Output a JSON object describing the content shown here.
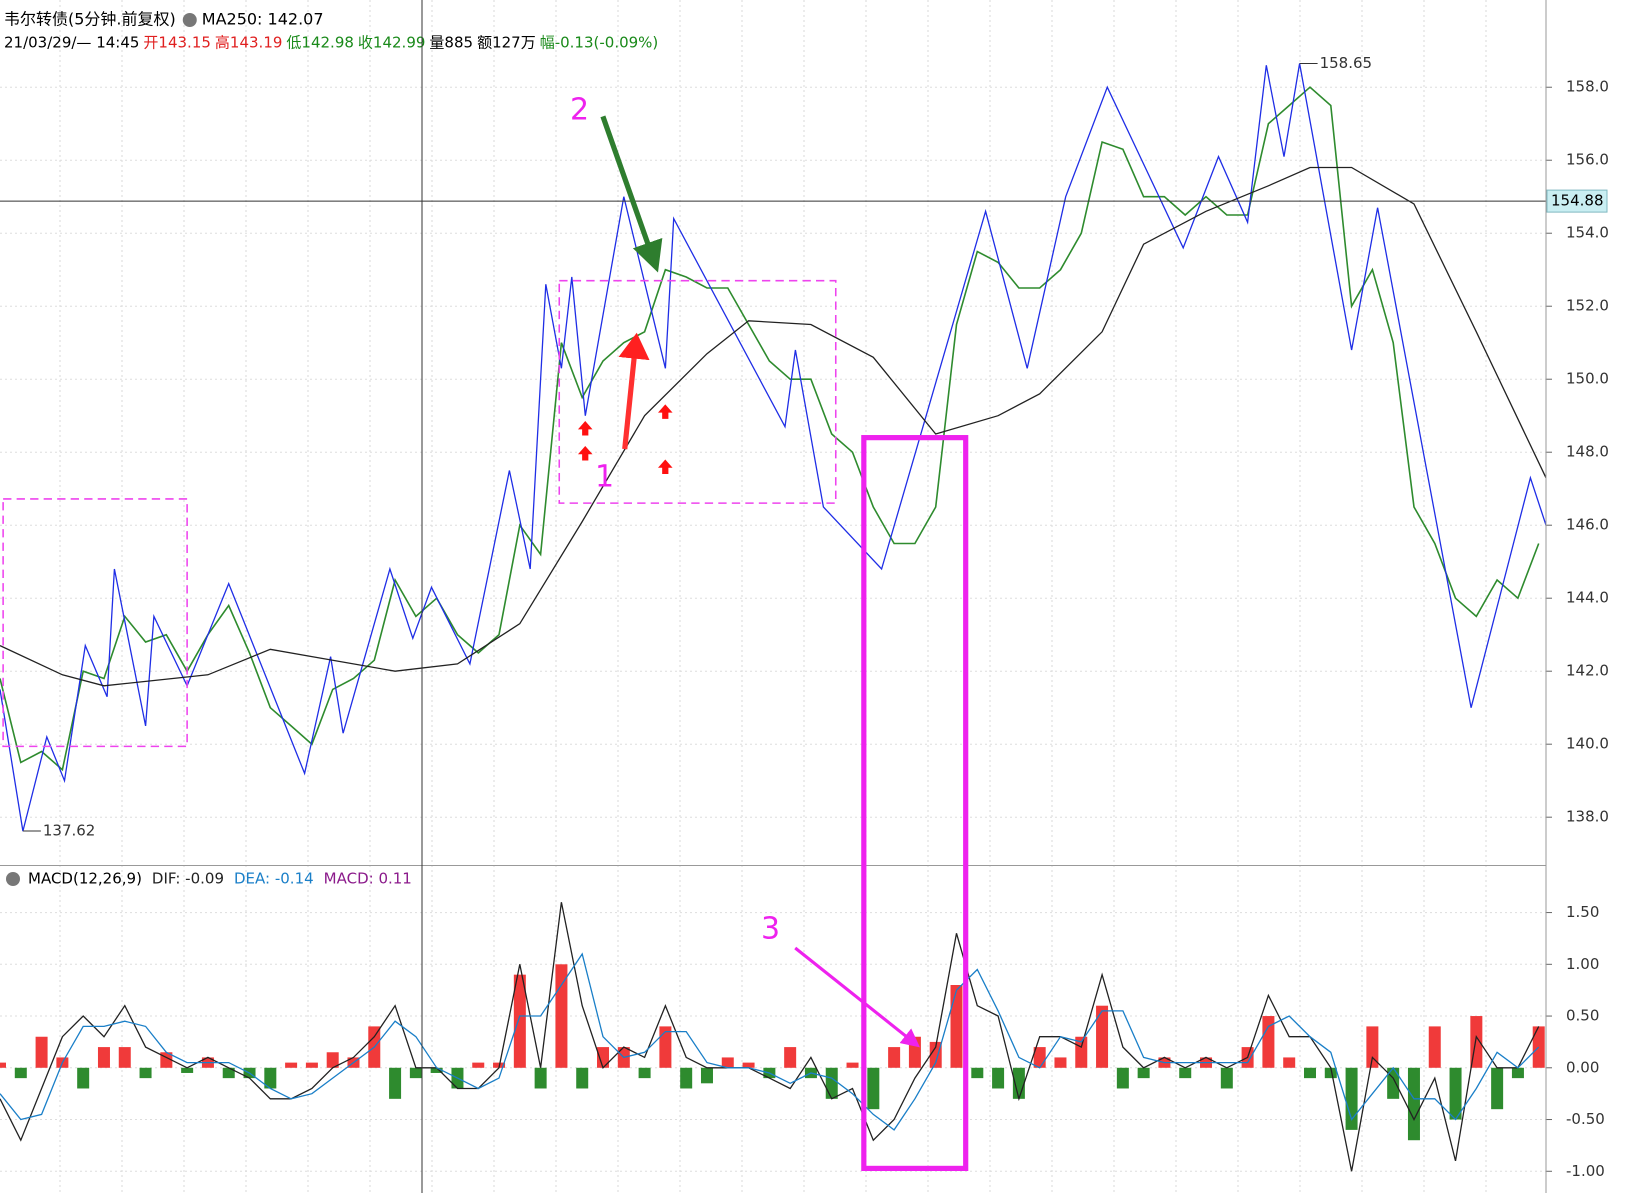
{
  "chart_data": [
    {
      "type": "line",
      "title": "韦尔转债(5分钟.前复权)",
      "info": [
        "21/03/29/— 14:45",
        "开143.15",
        "高143.19",
        "低142.98",
        "收142.99",
        "量885",
        "额127万",
        "幅-0.13(-0.09%)"
      ],
      "info_colors": [
        "#000000",
        "#e02020",
        "#e02020",
        "#1a8a1a",
        "#1a8a1a",
        "#000000",
        "#000000",
        "#1a8a1a"
      ],
      "markers": [
        "1",
        "2"
      ],
      "xlim": [
        0,
        74.35
      ],
      "ylim": [
        136.69,
        160.39
      ],
      "yticks": [
        {
          "value": 138,
          "label": "138.0"
        },
        {
          "value": 140,
          "label": "140.0"
        },
        {
          "value": 142,
          "label": "142.0"
        },
        {
          "value": 144,
          "label": "144.0"
        },
        {
          "value": 146,
          "label": "146.0"
        },
        {
          "value": 148,
          "label": "148.0"
        },
        {
          "value": 150,
          "label": "150.0"
        },
        {
          "value": 152,
          "label": "152.0"
        },
        {
          "value": 154,
          "label": "154.0"
        },
        {
          "value": 156,
          "label": "156.0"
        },
        {
          "value": 158,
          "label": "158.0"
        }
      ],
      "grid": true,
      "crosshair_price": 154.88,
      "annotations": [
        {
          "x": 62.5,
          "value": 158.65
        },
        {
          "x": 1.1,
          "value": 137.62
        }
      ],
      "series": [
        {
          "color": "#2e8b2e",
          "x": [
            0,
            1,
            2,
            3,
            4,
            5,
            6,
            7,
            8,
            9,
            10,
            11,
            12,
            13,
            14,
            15,
            16,
            17,
            18,
            19,
            20,
            21,
            22,
            23,
            24,
            25,
            26,
            27,
            28,
            29,
            30,
            31,
            32,
            33,
            34,
            35,
            36,
            37,
            38,
            39,
            40,
            41,
            42,
            43,
            44,
            45,
            46,
            47,
            48,
            49,
            50,
            51,
            52,
            53,
            54,
            55,
            56,
            57,
            58,
            59,
            60,
            61,
            62,
            63,
            64,
            65,
            66,
            67,
            68,
            69,
            70,
            71,
            72,
            73,
            74
          ],
          "values": [
            141.8,
            139.5,
            139.8,
            139.3,
            142.0,
            141.8,
            143.5,
            142.8,
            143.0,
            142.0,
            143.0,
            143.8,
            142.5,
            141.0,
            140.5,
            140.0,
            141.5,
            141.8,
            142.3,
            144.5,
            143.5,
            144.0,
            143.0,
            142.5,
            143.0,
            146.0,
            145.2,
            151.0,
            149.5,
            150.5,
            151.0,
            151.3,
            153.0,
            152.8,
            152.5,
            152.5,
            151.5,
            150.5,
            150.0,
            150.0,
            148.5,
            148.0,
            146.5,
            145.5,
            145.5,
            146.5,
            151.5,
            153.5,
            153.2,
            152.5,
            152.5,
            153.0,
            154.0,
            156.5,
            156.3,
            155.0,
            155.0,
            154.5,
            155.0,
            154.5,
            154.5,
            157.0,
            157.5,
            158.0,
            157.5,
            152.0,
            153.0,
            151.0,
            146.5,
            145.5,
            144.0,
            143.5,
            144.5,
            144.0,
            145.5
          ]
        },
        {
          "color": "#1f2ee6",
          "x": [
            0,
            1.1,
            2.25,
            3.1,
            4.1,
            5.15,
            5.5,
            7,
            7.4,
            9,
            11,
            14.65,
            15.9,
            16.5,
            18.75,
            19.85,
            20.75,
            22.6,
            24.5,
            25.5,
            26.25,
            27,
            27.5,
            28.15,
            30,
            32,
            32.4,
            37.75,
            38.25,
            39.6,
            42.4,
            47.4,
            49.4,
            51.25,
            53.25,
            56.9,
            58.6,
            60,
            60.9,
            61.75,
            62.5,
            65,
            66.25,
            70.75,
            73.6,
            74.35
          ],
          "values": [
            141.5,
            137.62,
            140.2,
            139.0,
            142.7,
            141.3,
            144.8,
            140.5,
            143.5,
            141.6,
            144.4,
            139.2,
            142.4,
            140.3,
            144.8,
            142.9,
            144.3,
            142.2,
            147.5,
            144.8,
            152.6,
            150.3,
            152.8,
            149.0,
            155.0,
            150.3,
            154.4,
            148.7,
            150.8,
            146.5,
            144.8,
            154.6,
            150.3,
            155.0,
            158.0,
            153.6,
            156.1,
            154.3,
            158.6,
            156.1,
            158.65,
            150.8,
            154.7,
            141.0,
            147.3,
            146.0
          ]
        },
        {
          "name": "MA250: 142.07",
          "color": "#222222",
          "x": [
            0,
            3,
            5,
            10,
            13,
            15,
            19,
            22,
            25,
            28,
            31,
            34,
            36,
            39,
            42,
            45,
            48,
            50,
            53,
            55,
            58,
            61,
            63,
            65,
            68,
            71,
            74.35
          ],
          "values": [
            142.7,
            141.9,
            141.6,
            141.9,
            142.6,
            142.4,
            142.0,
            142.2,
            143.3,
            146.1,
            149.0,
            150.7,
            151.6,
            151.5,
            150.6,
            148.5,
            149.0,
            149.6,
            151.3,
            153.7,
            154.6,
            155.3,
            155.8,
            155.8,
            154.8,
            151.3,
            147.3
          ]
        }
      ]
    },
    {
      "type": "line",
      "title": "MACD(12,26,9)",
      "markers": [
        "3"
      ],
      "xlim": [
        0,
        74.35
      ],
      "ylim": [
        -1.21,
        1.95
      ],
      "yticks": [
        {
          "value": -1,
          "label": "-1.00"
        },
        {
          "value": -0.5,
          "label": "-0.50"
        },
        {
          "value": 0,
          "label": "0.00"
        },
        {
          "value": 0.5,
          "label": "0.50"
        },
        {
          "value": 1,
          "label": "1.00"
        },
        {
          "value": 1.5,
          "label": "1.50"
        }
      ],
      "grid": true,
      "series": [
        {
          "name": "MACD: 0.11",
          "type": "bar",
          "color": "#8b1a8b",
          "up_color": "#f03a3a",
          "down_color": "#2e8b2e",
          "x": [
            0,
            1,
            2,
            3,
            4,
            5,
            6,
            7,
            8,
            9,
            10,
            11,
            12,
            13,
            14,
            15,
            16,
            17,
            18,
            19,
            20,
            21,
            22,
            23,
            24,
            25,
            26,
            27,
            28,
            29,
            30,
            31,
            32,
            33,
            34,
            35,
            36,
            37,
            38,
            39,
            40,
            41,
            42,
            43,
            44,
            45,
            46,
            47,
            48,
            49,
            50,
            51,
            52,
            53,
            54,
            55,
            56,
            57,
            58,
            59,
            60,
            61,
            62,
            63,
            64,
            65,
            66,
            67,
            68,
            69,
            70,
            71,
            72,
            73,
            74
          ],
          "values": [
            0.05,
            -0.1,
            0.3,
            0.1,
            -0.2,
            0.2,
            0.2,
            -0.1,
            0.15,
            -0.05,
            0.1,
            -0.1,
            -0.1,
            -0.2,
            0.05,
            0.05,
            0.15,
            0.1,
            0.4,
            -0.3,
            -0.1,
            -0.05,
            -0.2,
            0.05,
            0.05,
            0.9,
            -0.2,
            1.0,
            -0.2,
            0.2,
            0.2,
            -0.1,
            0.4,
            -0.2,
            -0.15,
            0.1,
            0.05,
            -0.1,
            0.2,
            -0.1,
            -0.3,
            0.05,
            -0.4,
            0.2,
            0.3,
            0.25,
            0.8,
            -0.1,
            -0.2,
            -0.3,
            0.2,
            0.1,
            0.3,
            0.6,
            -0.2,
            -0.1,
            0.1,
            -0.1,
            0.1,
            -0.2,
            0.2,
            0.5,
            0.1,
            -0.1,
            -0.1,
            -0.6,
            0.4,
            -0.3,
            -0.7,
            0.4,
            -0.5,
            0.5,
            -0.4,
            -0.1,
            0.4
          ]
        },
        {
          "name": "DIF: -0.09",
          "color": "#222222",
          "x": [
            0,
            1,
            2,
            3,
            4,
            5,
            6,
            7,
            8,
            9,
            10,
            11,
            12,
            13,
            14,
            15,
            16,
            17,
            18,
            19,
            20,
            21,
            22,
            23,
            24,
            25,
            26,
            27,
            28,
            29,
            30,
            31,
            32,
            33,
            34,
            35,
            36,
            37,
            38,
            39,
            40,
            41,
            42,
            43,
            44,
            45,
            46,
            47,
            48,
            49,
            50,
            51,
            52,
            53,
            54,
            55,
            56,
            57,
            58,
            59,
            60,
            61,
            62,
            63,
            64,
            65,
            66,
            67,
            68,
            69,
            70,
            71,
            72,
            73,
            74
          ],
          "values": [
            -0.3,
            -0.7,
            -0.2,
            0.3,
            0.5,
            0.3,
            0.6,
            0.2,
            0.1,
            0.0,
            0.1,
            0.0,
            -0.1,
            -0.3,
            -0.3,
            -0.2,
            0.0,
            0.1,
            0.3,
            0.6,
            0.0,
            0.0,
            -0.2,
            -0.2,
            0.0,
            1.0,
            0.0,
            1.6,
            0.6,
            0.0,
            0.2,
            0.1,
            0.6,
            0.1,
            0.0,
            0.0,
            0.0,
            -0.1,
            -0.2,
            0.1,
            -0.3,
            -0.2,
            -0.7,
            -0.5,
            -0.1,
            0.2,
            1.3,
            0.6,
            0.5,
            -0.3,
            0.3,
            0.3,
            0.2,
            0.9,
            0.2,
            0.0,
            0.1,
            0.0,
            0.1,
            0.0,
            0.1,
            0.7,
            0.3,
            0.3,
            0.0,
            -1.0,
            0.1,
            -0.1,
            -0.5,
            -0.1,
            -0.9,
            0.3,
            0.0,
            0.0,
            0.4
          ]
        },
        {
          "name": "DEA: -0.14",
          "color": "#1a7fc8",
          "x": [
            0,
            1,
            2,
            3,
            4,
            5,
            6,
            7,
            8,
            9,
            10,
            11,
            12,
            13,
            14,
            15,
            16,
            17,
            18,
            19,
            20,
            21,
            22,
            23,
            24,
            25,
            26,
            27,
            28,
            29,
            30,
            31,
            32,
            33,
            34,
            35,
            36,
            37,
            38,
            39,
            40,
            41,
            42,
            43,
            44,
            45,
            46,
            47,
            48,
            49,
            50,
            51,
            52,
            53,
            54,
            55,
            56,
            57,
            58,
            59,
            60,
            61,
            62,
            63,
            64,
            65,
            66,
            67,
            68,
            69,
            70,
            71,
            72,
            73,
            74
          ],
          "values": [
            -0.25,
            -0.5,
            -0.45,
            0.05,
            0.4,
            0.4,
            0.45,
            0.4,
            0.15,
            0.05,
            0.05,
            0.05,
            -0.05,
            -0.2,
            -0.3,
            -0.25,
            -0.1,
            0.05,
            0.2,
            0.45,
            0.3,
            0.0,
            -0.1,
            -0.2,
            -0.1,
            0.5,
            0.5,
            0.8,
            1.1,
            0.3,
            0.1,
            0.15,
            0.35,
            0.35,
            0.05,
            0.0,
            0.0,
            -0.05,
            -0.15,
            -0.05,
            -0.1,
            -0.25,
            -0.45,
            -0.6,
            -0.3,
            0.05,
            0.75,
            0.95,
            0.55,
            0.1,
            0.0,
            0.3,
            0.25,
            0.55,
            0.55,
            0.1,
            0.05,
            0.05,
            0.05,
            0.05,
            0.05,
            0.4,
            0.5,
            0.3,
            0.15,
            -0.5,
            -0.25,
            0.0,
            -0.3,
            -0.3,
            -0.5,
            -0.2,
            0.15,
            0.0,
            0.2
          ]
        }
      ]
    }
  ]
}
